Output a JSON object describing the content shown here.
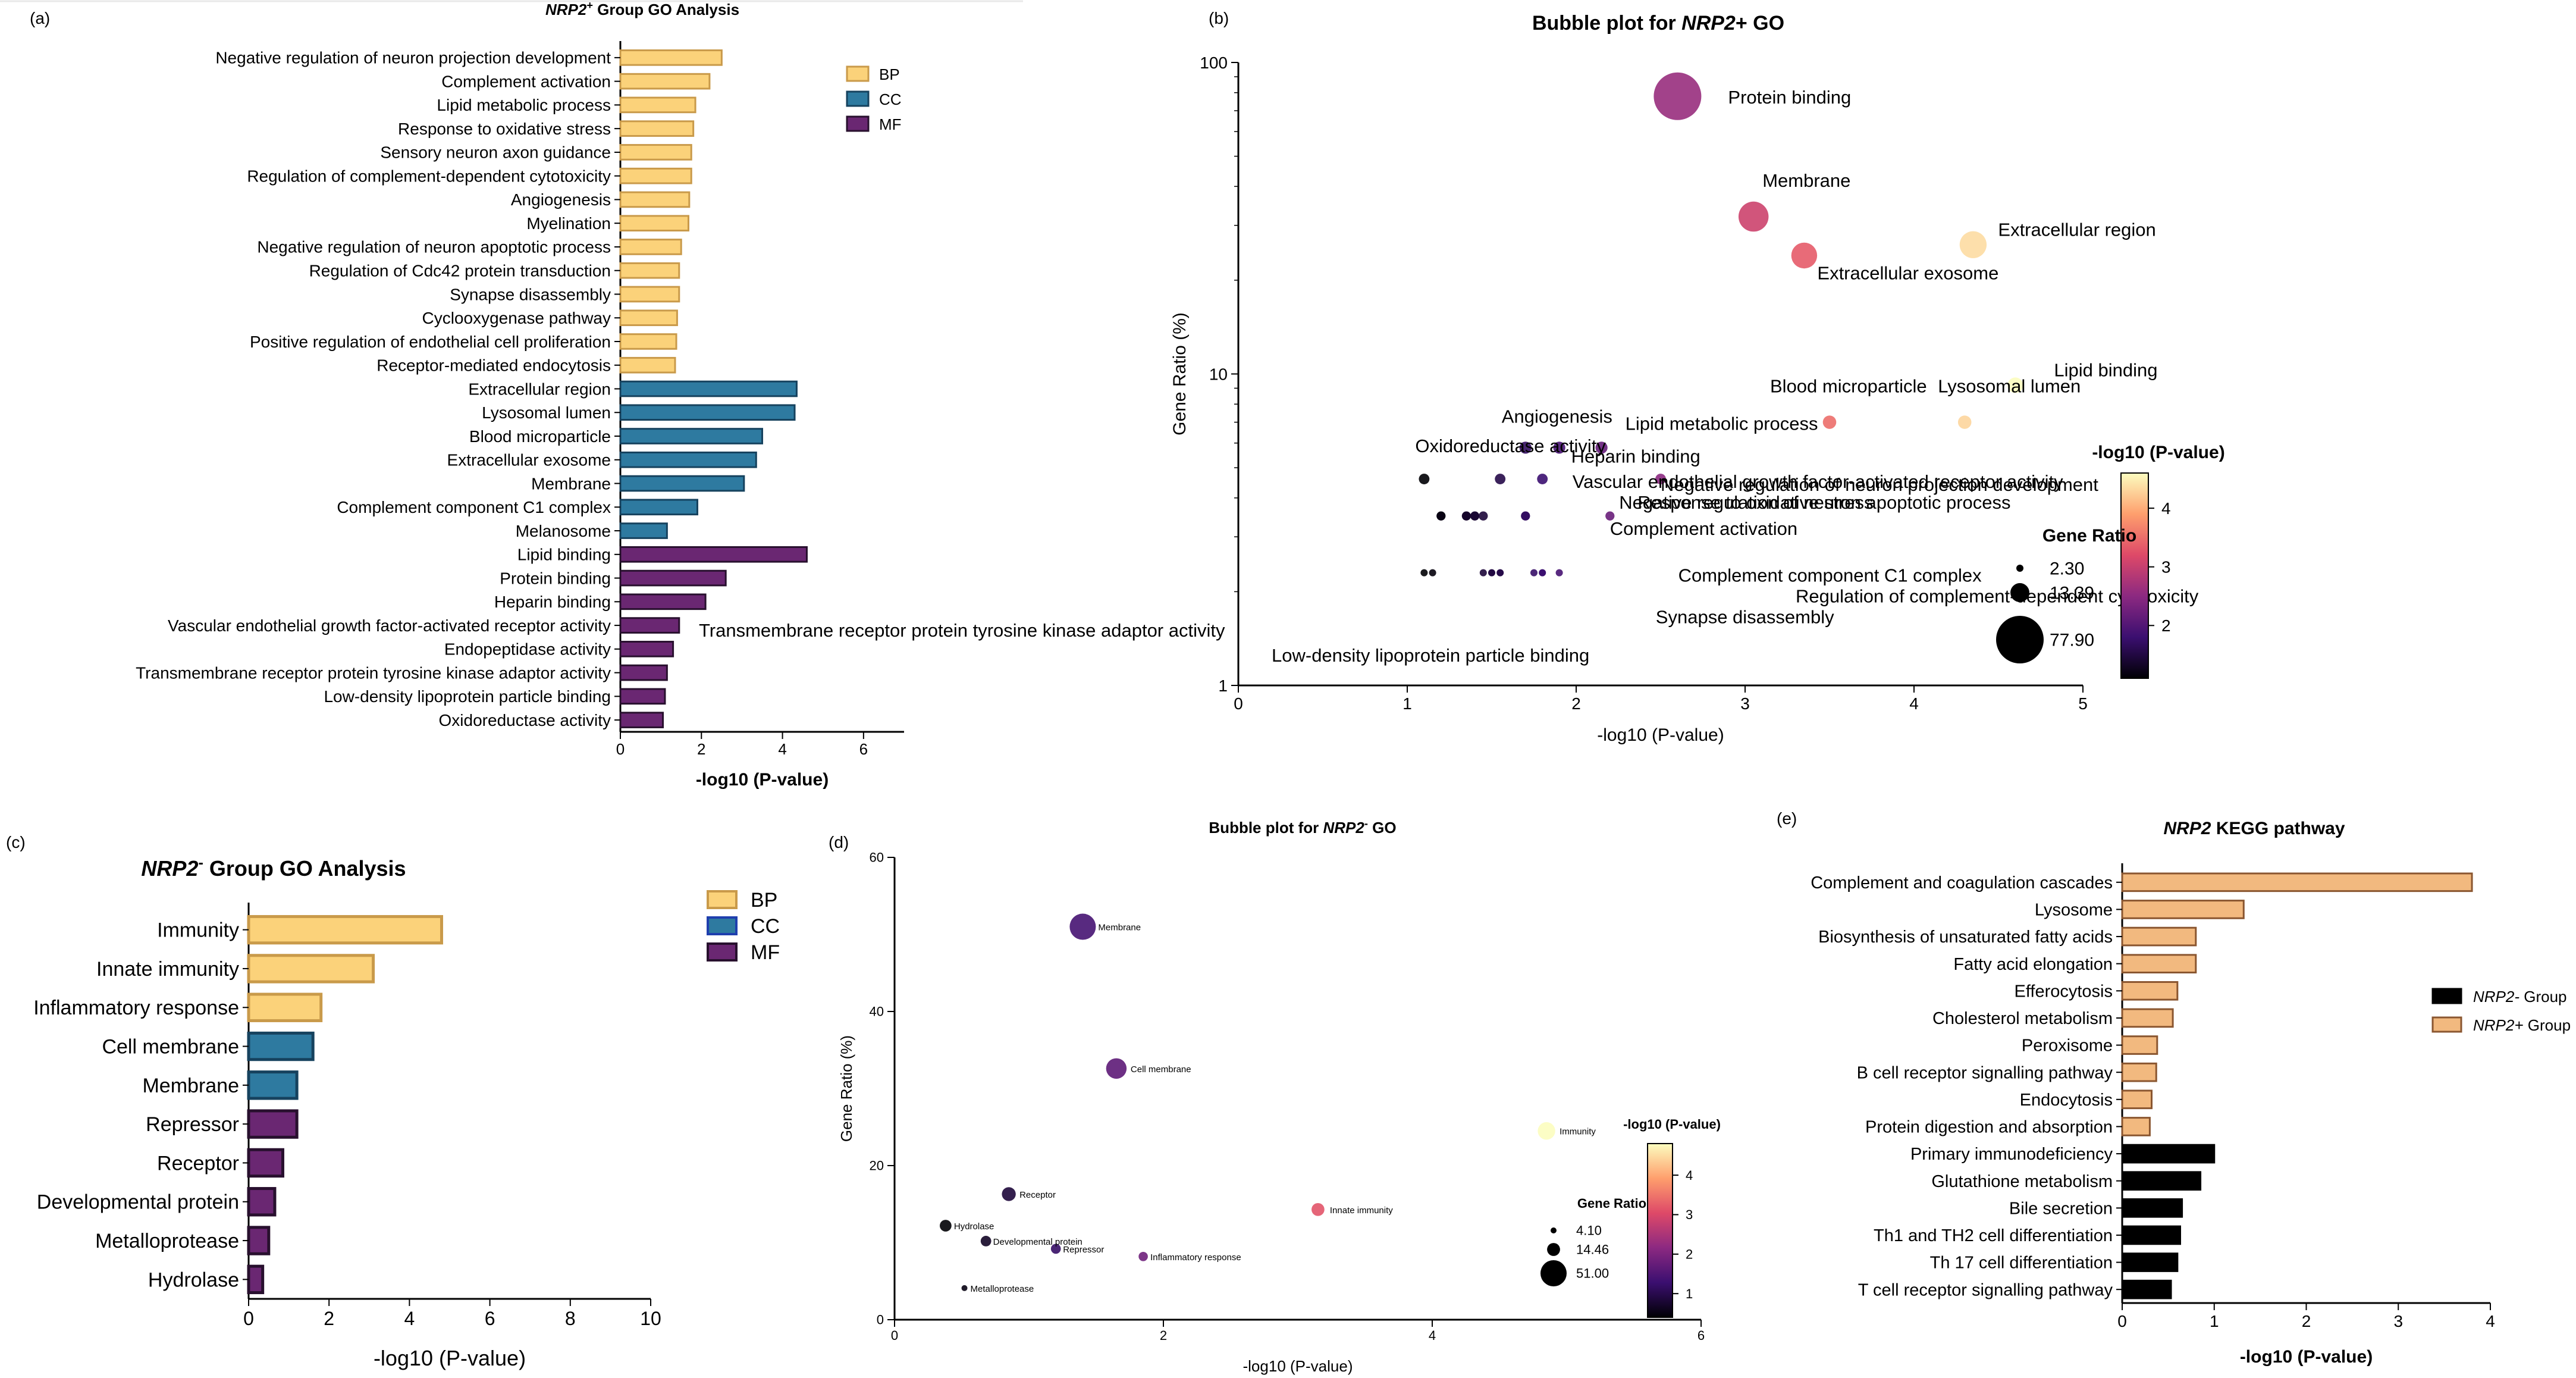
{
  "colors": {
    "bp": "#fbd27a",
    "bp_edge": "#c99a4a",
    "cc": "#2e7aa0",
    "cc_edge": "#16425e",
    "cc_c": "#2e7aa0",
    "cc_c_edge": "#1f3fae",
    "mf": "#6a2772",
    "mf_edge": "#28102e",
    "kegg_pos": "#f2b97f",
    "kegg_pos_edge": "#8a5630",
    "kegg_neg": "#000000"
  },
  "colorbar_stops": [
    "#000004",
    "#3b0f70",
    "#8c2981",
    "#de4968",
    "#fe9f6d",
    "#fcfdbf"
  ],
  "chart_data": [
    {
      "panel": "(a)",
      "type": "bar",
      "orientation": "horizontal",
      "title": "NRP2+ Group GO Analysis",
      "title_parts": {
        "italic": "NRP2",
        "sup": "+",
        "rest": " Group GO Analysis"
      },
      "xlabel": "-log10 (P-value)",
      "xlim": [
        0,
        7
      ],
      "xticks": [
        "0",
        "2",
        "4",
        "6"
      ],
      "legend": [
        "BP",
        "CC",
        "MF"
      ],
      "legend_position": "top-right",
      "categories": [
        "Negative regulation of neuron projection development",
        "Complement activation",
        "Lipid metabolic process",
        "Response to oxidative stress",
        "Sensory neuron axon guidance",
        "Regulation of complement-dependent cytotoxicity",
        "Angiogenesis",
        "Myelination",
        "Negative regulation of neuron apoptotic process",
        "Regulation of Cdc42 protein transduction",
        "Synapse disassembly",
        "Cyclooxygenase pathway",
        "Positive regulation of endothelial cell proliferation",
        "Receptor-mediated endocytosis",
        "Extracellular region",
        "Lysosomal lumen",
        "Blood microparticle",
        "Extracellular exosome",
        "Membrane",
        "Complement component C1 complex",
        "Melanosome",
        "Lipid binding",
        "Protein binding",
        "Heparin binding",
        "Vascular endothelial growth factor-activated receptor activity",
        "Endopeptidase activity",
        "Transmembrane receptor protein tyrosine kinase adaptor activity",
        "Low-density lipoprotein particle binding",
        "Oxidoreductase activity"
      ],
      "groups": [
        "BP",
        "BP",
        "BP",
        "BP",
        "BP",
        "BP",
        "BP",
        "BP",
        "BP",
        "BP",
        "BP",
        "BP",
        "BP",
        "BP",
        "CC",
        "CC",
        "CC",
        "CC",
        "CC",
        "CC",
        "CC",
        "MF",
        "MF",
        "MF",
        "MF",
        "MF",
        "MF",
        "MF",
        "MF"
      ],
      "values": [
        2.5,
        2.2,
        1.85,
        1.8,
        1.75,
        1.75,
        1.7,
        1.68,
        1.5,
        1.45,
        1.45,
        1.4,
        1.38,
        1.35,
        4.35,
        4.3,
        3.5,
        3.35,
        3.05,
        1.9,
        1.15,
        4.6,
        2.6,
        2.1,
        1.45,
        1.3,
        1.15,
        1.1,
        1.05
      ]
    },
    {
      "panel": "(b)",
      "type": "scatter",
      "subtype": "bubble",
      "title": "Bubble plot for NRP2+ GO",
      "title_parts": {
        "plain": "Bubble plot for ",
        "italic": "NRP2",
        "rest": "+ GO"
      },
      "xlabel": "-log10 (P-value)",
      "ylabel": "Gene Ratio (%)",
      "xlim": [
        0,
        5
      ],
      "ylim": [
        1,
        100
      ],
      "yscale": "log",
      "xticks": [
        "0",
        "1",
        "2",
        "3",
        "4",
        "5"
      ],
      "yticks": [
        "1",
        "10",
        "100"
      ],
      "colorbar_title": "-log10 (P-value)",
      "colorbar_range": [
        1.1,
        4.6
      ],
      "colorbar_ticks": [
        "2",
        "3",
        "4"
      ],
      "size_legend_title": "Gene Ratio",
      "size_legend_values": [
        "2.30",
        "13.39",
        "77.90"
      ],
      "points": [
        {
          "label": "Protein binding",
          "x": 2.6,
          "y": 77.9
        },
        {
          "label": "Membrane",
          "x": 3.05,
          "y": 32.0
        },
        {
          "label": "Extracellular region",
          "x": 4.35,
          "y": 26.0
        },
        {
          "label": "Extracellular exosome",
          "x": 3.35,
          "y": 24.0
        },
        {
          "label": "Lipid binding",
          "x": 4.6,
          "y": 9.2
        },
        {
          "label": "Blood microparticle",
          "x": 3.5,
          "y": 7.0
        },
        {
          "label": "Lysosomal lumen",
          "x": 4.3,
          "y": 7.0
        },
        {
          "label": "Angiogenesis",
          "x": 1.7,
          "y": 5.8
        },
        {
          "label": "Lipid metabolic process",
          "x": 2.15,
          "y": 5.8
        },
        {
          "label": "Heparin binding",
          "x": 1.9,
          "y": 5.8
        },
        {
          "label": "Oxidoreductase activity",
          "x": 1.1,
          "y": 4.6
        },
        {
          "label": "Negative regulation of neuron projection development",
          "x": 2.5,
          "y": 4.6
        },
        {
          "label": "Negative regulation of neuron apoptotic process",
          "x": 1.55,
          "y": 4.6
        },
        {
          "label": "Response to oxidative stress",
          "x": 1.8,
          "y": 4.6
        },
        {
          "label": "Complement activation",
          "x": 2.2,
          "y": 3.5
        },
        {
          "label": "Vascular endothelial growth factor-activated receptor activity",
          "x": 1.45,
          "y": 3.5
        },
        {
          "label": "Complement component C1 complex",
          "x": 1.9,
          "y": 2.3
        },
        {
          "label": "Regulation of complement-dependent cytotoxicity",
          "x": 1.75,
          "y": 2.3
        },
        {
          "label": "Synapse disassembly",
          "x": 1.45,
          "y": 2.3
        },
        {
          "label": "Transmembrane receptor protein tyrosine kinase adaptor activity",
          "x": 1.15,
          "y": 2.3
        },
        {
          "label": "Low-density lipoprotein particle binding",
          "x": 1.1,
          "y": 2.3
        }
      ],
      "extra_points": [
        {
          "x": 1.2,
          "y": 3.5
        },
        {
          "x": 1.35,
          "y": 3.5
        },
        {
          "x": 1.4,
          "y": 3.5
        },
        {
          "x": 1.7,
          "y": 3.5
        },
        {
          "x": 1.5,
          "y": 2.3
        },
        {
          "x": 1.55,
          "y": 2.3
        },
        {
          "x": 1.8,
          "y": 2.3
        }
      ]
    },
    {
      "panel": "(c)",
      "type": "bar",
      "orientation": "horizontal",
      "title": "NRP2- Group GO Analysis",
      "title_parts": {
        "italic": "NRP2",
        "sup": "-",
        "rest": " Group GO Analysis"
      },
      "xlabel": "-log10 (P-value)",
      "xlim": [
        0,
        10
      ],
      "xticks": [
        "0",
        "2",
        "4",
        "6",
        "8",
        "10"
      ],
      "legend": [
        "BP",
        "CC",
        "MF"
      ],
      "legend_position": "top-right",
      "categories": [
        "Immunity",
        "Innate immunity",
        "Inflammatory response",
        "Cell membrane",
        "Membrane",
        "Repressor",
        "Receptor",
        "Developmental protein",
        "Metalloprotease",
        "Hydrolase"
      ],
      "groups": [
        "BP",
        "BP",
        "BP",
        "CC",
        "CC",
        "MF",
        "MF",
        "MF",
        "MF",
        "MF"
      ],
      "values": [
        4.8,
        3.1,
        1.8,
        1.6,
        1.2,
        1.2,
        0.85,
        0.65,
        0.5,
        0.35
      ]
    },
    {
      "panel": "(d)",
      "type": "scatter",
      "subtype": "bubble",
      "title": "Bubble plot for NRP2- GO",
      "title_parts": {
        "plain": "Bubble plot for ",
        "italic": "NRP2",
        "sup": "-",
        "rest": " GO"
      },
      "xlabel": "-log10 (P-value)",
      "ylabel": "Gene Ratio (%)",
      "xlim": [
        0,
        6
      ],
      "ylim": [
        0,
        60
      ],
      "xticks": [
        "0",
        "2",
        "4",
        "6"
      ],
      "yticks": [
        "0",
        "20",
        "40",
        "60"
      ],
      "colorbar_title": "-log10 (P-value)",
      "colorbar_range": [
        0.4,
        4.8
      ],
      "colorbar_ticks": [
        "1",
        "2",
        "3",
        "4"
      ],
      "size_legend_title": "Gene Ratio",
      "size_legend_values": [
        "4.10",
        "14.46",
        "51.00"
      ],
      "points": [
        {
          "label": "Membrane",
          "x": 1.4,
          "y": 51.0
        },
        {
          "label": "Cell membrane",
          "x": 1.65,
          "y": 32.6
        },
        {
          "label": "Immunity",
          "x": 4.85,
          "y": 24.5
        },
        {
          "label": "Receptor",
          "x": 0.85,
          "y": 16.3
        },
        {
          "label": "Innate immunity",
          "x": 3.15,
          "y": 14.3
        },
        {
          "label": "Hydrolase",
          "x": 0.38,
          "y": 12.2
        },
        {
          "label": "Developmental protein",
          "x": 0.68,
          "y": 10.2
        },
        {
          "label": "Repressor",
          "x": 1.2,
          "y": 9.2
        },
        {
          "label": "Inflammatory response",
          "x": 1.85,
          "y": 8.2
        },
        {
          "label": "Metalloprotease",
          "x": 0.52,
          "y": 4.1
        }
      ]
    },
    {
      "panel": "(e)",
      "type": "bar",
      "orientation": "horizontal",
      "title": "NRP2 KEGG pathway",
      "title_parts": {
        "italic": "NRP2",
        "rest": " KEGG pathway"
      },
      "xlabel": "-log10 (P-value)",
      "xlim": [
        0,
        4
      ],
      "xticks": [
        "0",
        "1",
        "2",
        "3",
        "4"
      ],
      "legend": [
        "NRP2- Group",
        "NRP2+ Group"
      ],
      "legend_position": "right",
      "categories": [
        "Complement and coagulation cascades",
        "Lysosome",
        "Biosynthesis of unsaturated fatty acids",
        "Fatty acid elongation",
        "Efferocytosis",
        "Cholesterol metabolism",
        "Peroxisome",
        "B cell receptor signalling pathway",
        "Endocytosis",
        "Protein digestion and absorption",
        "Primary immunodeficiency",
        "Glutathione metabolism",
        "Bile secretion",
        "Th1 and TH2 cell differentiation",
        "Th 17 cell differentiation",
        "T cell receptor signalling pathway"
      ],
      "groups": [
        "pos",
        "pos",
        "pos",
        "pos",
        "pos",
        "pos",
        "pos",
        "pos",
        "pos",
        "pos",
        "neg",
        "neg",
        "neg",
        "neg",
        "neg",
        "neg"
      ],
      "values": [
        3.8,
        1.32,
        0.8,
        0.8,
        0.6,
        0.55,
        0.38,
        0.37,
        0.32,
        0.3,
        1.0,
        0.85,
        0.65,
        0.63,
        0.6,
        0.53
      ]
    }
  ]
}
